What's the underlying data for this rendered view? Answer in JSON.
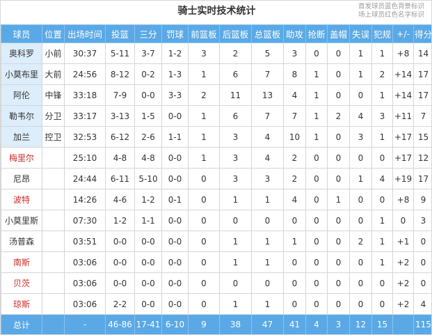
{
  "title": "骑士实时技术统计",
  "legend": [
    "首发球员蓝色背景标识",
    "场上球员红色名字标识"
  ],
  "colors": {
    "header": "#5aa9e6",
    "starter_bg": "#dceefb",
    "on_court_name": "#d42a2a"
  },
  "columns": [
    "球员",
    "位置",
    "出场时间",
    "投篮",
    "三分",
    "罚球",
    "前篮板",
    "后篮板",
    "总篮板",
    "助攻",
    "抢断",
    "盖帽",
    "失误",
    "犯规",
    "+/-",
    "得分"
  ],
  "players": [
    {
      "name": "奥科罗",
      "starter": true,
      "on_court": false,
      "stats": [
        "小前",
        "30:37",
        "5-11",
        "3-7",
        "1-2",
        "3",
        "2",
        "5",
        "3",
        "0",
        "0",
        "1",
        "1",
        "+8",
        "14"
      ]
    },
    {
      "name": "小莫布里",
      "starter": true,
      "on_court": false,
      "stats": [
        "大前",
        "24:56",
        "8-12",
        "0-2",
        "1-3",
        "1",
        "6",
        "7",
        "8",
        "1",
        "0",
        "1",
        "2",
        "+14",
        "17"
      ]
    },
    {
      "name": "阿伦",
      "starter": true,
      "on_court": false,
      "stats": [
        "中锋",
        "33:18",
        "7-9",
        "0-0",
        "3-3",
        "2",
        "11",
        "13",
        "4",
        "1",
        "0",
        "0",
        "1",
        "+14",
        "17"
      ]
    },
    {
      "name": "勒韦尔",
      "starter": true,
      "on_court": false,
      "stats": [
        "分卫",
        "33:17",
        "3-13",
        "1-5",
        "0-0",
        "1",
        "6",
        "7",
        "7",
        "1",
        "2",
        "4",
        "3",
        "+11",
        "7"
      ]
    },
    {
      "name": "加兰",
      "starter": true,
      "on_court": false,
      "stats": [
        "控卫",
        "32:53",
        "6-12",
        "2-6",
        "1-1",
        "1",
        "3",
        "4",
        "10",
        "1",
        "0",
        "3",
        "1",
        "+17",
        "15"
      ]
    },
    {
      "name": "梅里尔",
      "starter": false,
      "on_court": true,
      "stats": [
        "",
        "25:10",
        "4-8",
        "4-8",
        "0-0",
        "1",
        "3",
        "4",
        "2",
        "0",
        "0",
        "0",
        "0",
        "+17",
        "12"
      ]
    },
    {
      "name": "尼昂",
      "starter": false,
      "on_court": false,
      "stats": [
        "",
        "24:44",
        "6-11",
        "5-10",
        "0-0",
        "0",
        "3",
        "3",
        "2",
        "0",
        "0",
        "1",
        "4",
        "+19",
        "17"
      ]
    },
    {
      "name": "波特",
      "starter": false,
      "on_court": true,
      "stats": [
        "",
        "14:26",
        "4-6",
        "1-2",
        "0-1",
        "0",
        "1",
        "1",
        "4",
        "0",
        "1",
        "0",
        "0",
        "+8",
        "9"
      ]
    },
    {
      "name": "小莫里斯",
      "starter": false,
      "on_court": false,
      "stats": [
        "",
        "07:30",
        "1-2",
        "1-1",
        "0-0",
        "0",
        "0",
        "0",
        "0",
        "0",
        "0",
        "0",
        "1",
        "0",
        "3"
      ]
    },
    {
      "name": "汤普森",
      "starter": false,
      "on_court": false,
      "stats": [
        "",
        "03:51",
        "0-0",
        "0-0",
        "0-0",
        "0",
        "1",
        "1",
        "1",
        "0",
        "0",
        "2",
        "1",
        "+1",
        "0"
      ]
    },
    {
      "name": "南斯",
      "starter": false,
      "on_court": true,
      "stats": [
        "",
        "03:06",
        "0-0",
        "0-0",
        "0-0",
        "0",
        "1",
        "1",
        "0",
        "0",
        "0",
        "0",
        "1",
        "+2",
        "0"
      ]
    },
    {
      "name": "贝茨",
      "starter": false,
      "on_court": true,
      "stats": [
        "",
        "03:06",
        "0-0",
        "0-0",
        "0-0",
        "0",
        "0",
        "0",
        "0",
        "0",
        "0",
        "0",
        "0",
        "+2",
        "0"
      ]
    },
    {
      "name": "琼斯",
      "starter": false,
      "on_court": true,
      "stats": [
        "",
        "03:06",
        "2-2",
        "0-0",
        "0-0",
        "0",
        "1",
        "1",
        "0",
        "0",
        "0",
        "0",
        "0",
        "+2",
        "4"
      ]
    }
  ],
  "total": {
    "label": "总计",
    "stats": [
      "",
      "-",
      "46-86",
      "17-41",
      "6-10",
      "9",
      "38",
      "47",
      "41",
      "4",
      "3",
      "12",
      "15",
      "",
      "115"
    ]
  }
}
